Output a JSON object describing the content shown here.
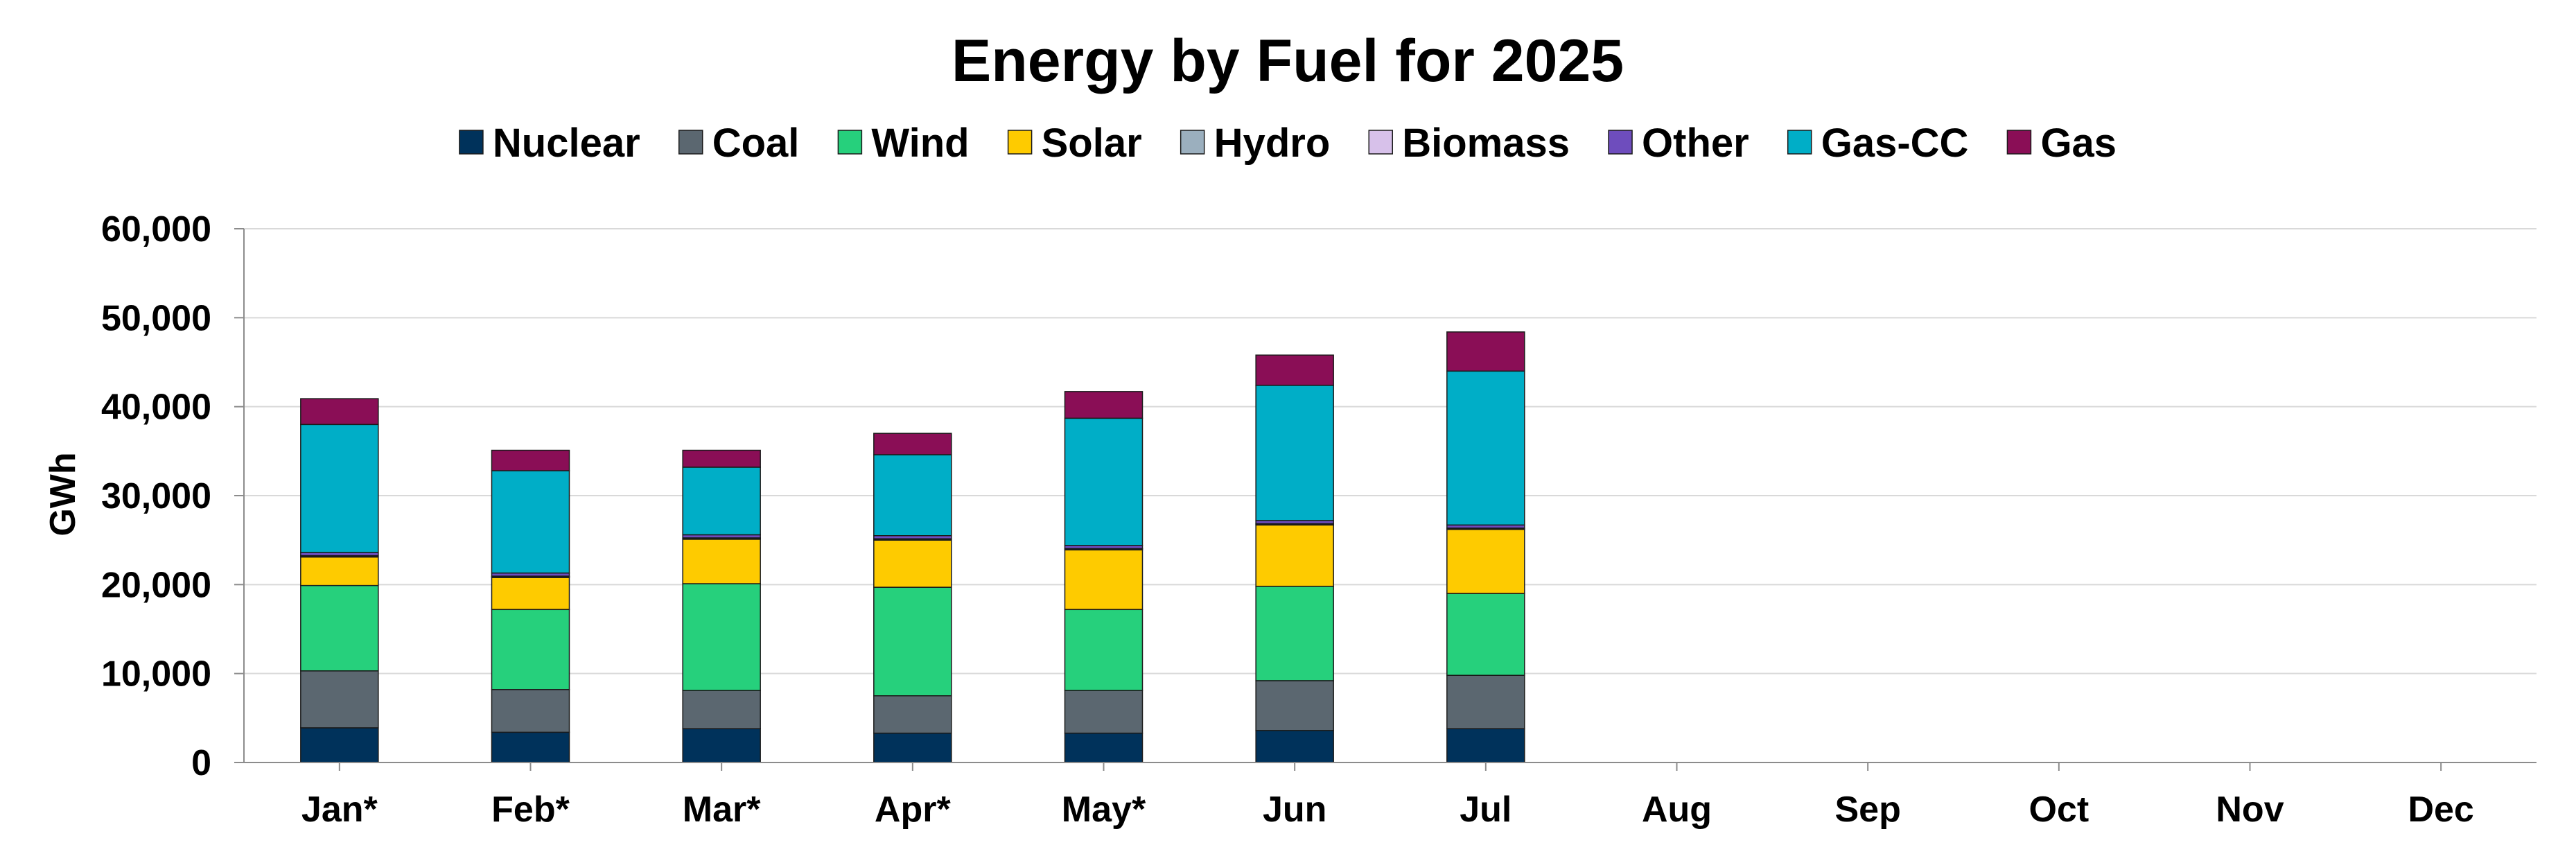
{
  "chart_data": {
    "type": "bar",
    "stacked": true,
    "title": "Energy by Fuel for 2025",
    "xlabel": "",
    "ylabel": "GWh",
    "ylim": [
      0,
      60000
    ],
    "yticks": [
      0,
      10000,
      20000,
      30000,
      40000,
      50000,
      60000
    ],
    "ytick_labels": [
      "0",
      "10,000",
      "20,000",
      "30,000",
      "40,000",
      "50,000",
      "60,000"
    ],
    "grid": true,
    "legend_position": "top",
    "categories": [
      "Jan*",
      "Feb*",
      "Mar*",
      "Apr*",
      "May*",
      "Jun",
      "Jul",
      "Aug",
      "Sep",
      "Oct",
      "Nov",
      "Dec"
    ],
    "series": [
      {
        "name": "Nuclear",
        "color": "#00325b",
        "values": [
          3900,
          3400,
          3800,
          3300,
          3300,
          3600,
          3800,
          null,
          null,
          null,
          null,
          null
        ]
      },
      {
        "name": "Coal",
        "color": "#5b6770",
        "values": [
          6400,
          4800,
          4300,
          4200,
          4800,
          5600,
          6000,
          null,
          null,
          null,
          null,
          null
        ]
      },
      {
        "name": "Wind",
        "color": "#26d07c",
        "values": [
          9600,
          9000,
          12000,
          12200,
          9100,
          10600,
          9200,
          null,
          null,
          null,
          null,
          null
        ]
      },
      {
        "name": "Solar",
        "color": "#fecb00",
        "values": [
          3200,
          3600,
          5000,
          5300,
          6700,
          6900,
          7200,
          null,
          null,
          null,
          null,
          null
        ]
      },
      {
        "name": "Hydro",
        "color": "#9bafbe",
        "values": [
          100,
          100,
          100,
          100,
          100,
          100,
          100,
          null,
          null,
          null,
          null,
          null
        ]
      },
      {
        "name": "Biomass",
        "color": "#d7c1ea",
        "values": [
          50,
          50,
          50,
          50,
          50,
          50,
          50,
          null,
          null,
          null,
          null,
          null
        ]
      },
      {
        "name": "Other",
        "color": "#6e4dbd",
        "values": [
          350,
          350,
          350,
          350,
          350,
          350,
          350,
          null,
          null,
          null,
          null,
          null
        ]
      },
      {
        "name": "Gas-CC",
        "color": "#00aec7",
        "values": [
          14400,
          11500,
          7600,
          9100,
          14300,
          15200,
          17300,
          null,
          null,
          null,
          null,
          null
        ]
      },
      {
        "name": "Gas",
        "color": "#8a0e56",
        "values": [
          2900,
          2300,
          1900,
          2400,
          3000,
          3400,
          4400,
          null,
          null,
          null,
          null,
          null
        ]
      }
    ]
  }
}
